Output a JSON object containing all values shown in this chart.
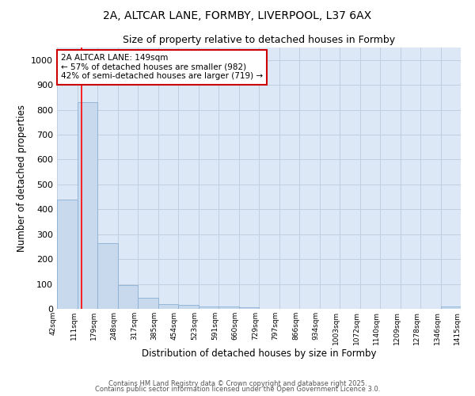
{
  "title_line1": "2A, ALTCAR LANE, FORMBY, LIVERPOOL, L37 6AX",
  "title_line2": "Size of property relative to detached houses in Formby",
  "xlabel": "Distribution of detached houses by size in Formby",
  "ylabel": "Number of detached properties",
  "bar_values": [
    440,
    830,
    265,
    95,
    45,
    20,
    15,
    8,
    10,
    5,
    0,
    0,
    0,
    0,
    0,
    0,
    0,
    0,
    0,
    8
  ],
  "bin_labels": [
    "42sqm",
    "111sqm",
    "179sqm",
    "248sqm",
    "317sqm",
    "385sqm",
    "454sqm",
    "523sqm",
    "591sqm",
    "660sqm",
    "729sqm",
    "797sqm",
    "866sqm",
    "934sqm",
    "1003sqm",
    "1072sqm",
    "1140sqm",
    "1209sqm",
    "1278sqm",
    "1346sqm",
    "1415sqm"
  ],
  "bar_color": "#c8d9ee",
  "bar_edge_color": "#8ab0d4",
  "grid_color": "#c0cfe0",
  "background_color": "#dce8f5",
  "red_line_x": 1.22,
  "annotation_text": "2A ALTCAR LANE: 149sqm\n← 57% of detached houses are smaller (982)\n42% of semi-detached houses are larger (719) →",
  "annotation_box_color": "#ffffff",
  "annotation_border_color": "#cc0000",
  "ylim": [
    0,
    1050
  ],
  "yticks": [
    0,
    100,
    200,
    300,
    400,
    500,
    600,
    700,
    800,
    900,
    1000
  ],
  "footer_line1": "Contains HM Land Registry data © Crown copyright and database right 2025.",
  "footer_line2": "Contains public sector information licensed under the Open Government Licence 3.0."
}
